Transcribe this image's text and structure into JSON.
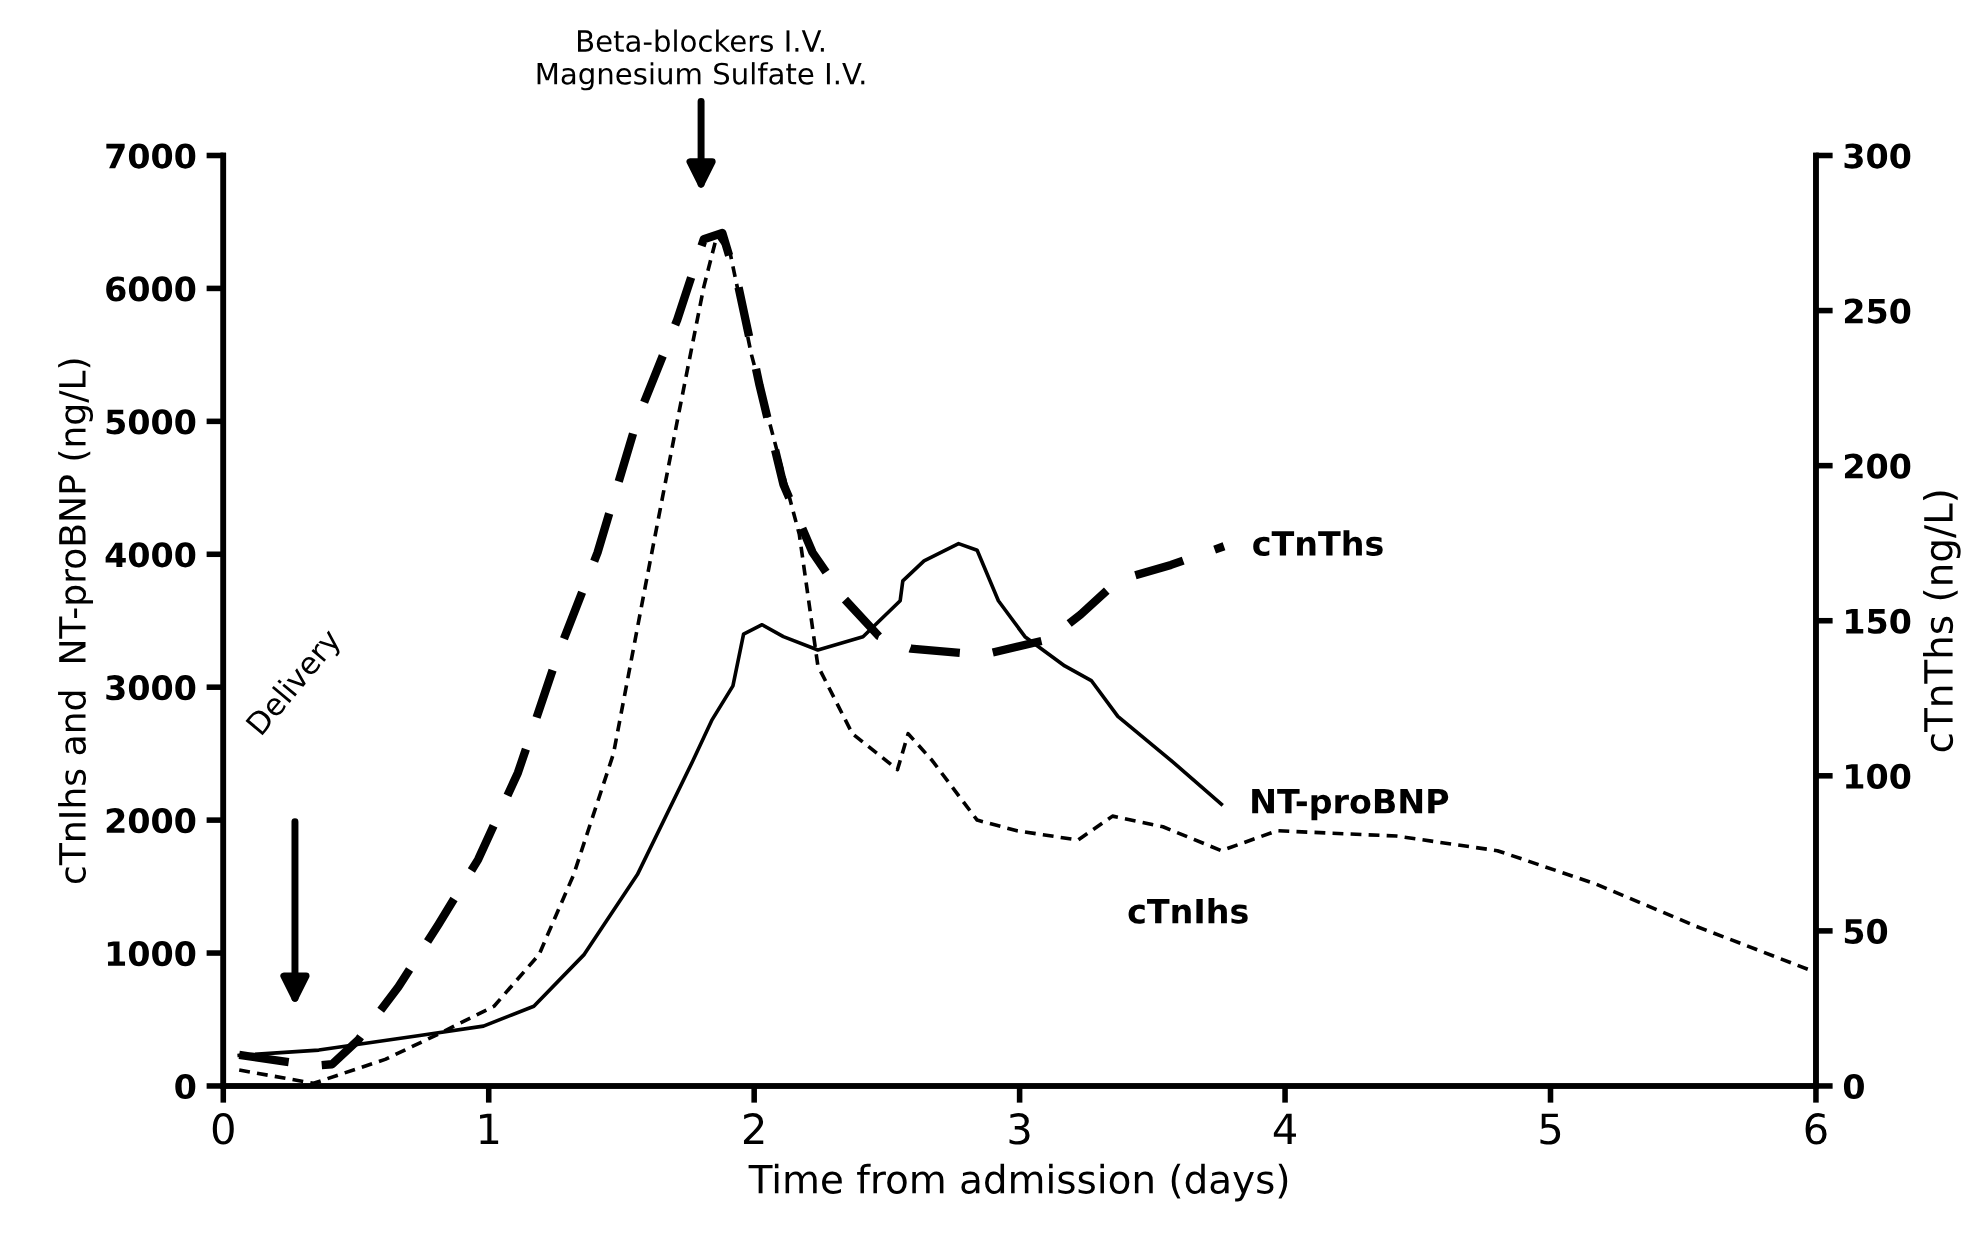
{
  "chart_data": {
    "type": "line",
    "xlabel": "Time from admission (days)",
    "ylabel": "cTnIhs and  NT-proBNP (ng/L)",
    "y2label": "cTnThs (ng/L)",
    "xlim": [
      0,
      6
    ],
    "xticks": [
      0,
      1,
      2,
      3,
      4,
      5,
      6
    ],
    "ylim": [
      0,
      7000
    ],
    "yticks": [
      0,
      1000,
      2000,
      3000,
      4000,
      5000,
      6000,
      7000
    ],
    "y2lim": [
      0,
      300
    ],
    "y2ticks": [
      0,
      50,
      100,
      150,
      200,
      250,
      300
    ],
    "grid": false,
    "legend": false,
    "marker": "none",
    "series": [
      {
        "name": "NT-proBNP",
        "color": "#000000",
        "line_style": "solid",
        "x": [
          0.06,
          0.36,
          0.74,
          0.98,
          1.17,
          1.36,
          1.56,
          1.77,
          1.84,
          1.92,
          1.96,
          2.03,
          2.11,
          2.24,
          2.41,
          2.55,
          2.56,
          2.64,
          2.77,
          2.84,
          2.92,
          3.02,
          3.17,
          3.27,
          3.37,
          3.57,
          3.76
        ],
        "values": [
          230,
          270,
          380,
          450,
          600,
          990,
          1590,
          2450,
          2750,
          3010,
          3400,
          3470,
          3380,
          3280,
          3380,
          3650,
          3800,
          3950,
          4080,
          4030,
          3650,
          3380,
          3160,
          3050,
          2780,
          2450,
          2120
        ]
      },
      {
        "name": "cTnThs",
        "color": "#000000",
        "line_style": "dashed",
        "axis": "y2",
        "x": [
          0.06,
          0.34,
          0.41,
          0.51,
          0.66,
          0.81,
          0.96,
          1.11,
          1.26,
          1.41,
          1.56,
          1.71,
          1.81,
          1.88,
          1.94,
          2.02,
          2.11,
          2.22,
          2.34,
          2.47,
          2.59,
          2.86,
          3.11,
          3.23,
          3.37,
          3.57,
          3.77
        ],
        "values": [
          10,
          6.5,
          7,
          15,
          32,
          52,
          73,
          101,
          139,
          172,
          215,
          247,
          273,
          275,
          258,
          226,
          194,
          172,
          157,
          145,
          141,
          139,
          144,
          152,
          163,
          168,
          174
        ]
      },
      {
        "name": "cTnIhs",
        "color": "#000000",
        "line_style": "dashed",
        "x": [
          0.06,
          0.34,
          0.61,
          0.81,
          1.02,
          1.19,
          1.32,
          1.47,
          1.59,
          1.71,
          1.81,
          1.86,
          1.91,
          1.99,
          2.09,
          2.17,
          2.24,
          2.37,
          2.54,
          2.58,
          2.67,
          2.84,
          2.99,
          3.22,
          3.35,
          3.54,
          3.76,
          3.97,
          4.42,
          4.8,
          5.17,
          5.55,
          5.98
        ],
        "values": [
          120,
          20,
          200,
          390,
          600,
          990,
          1590,
          2500,
          3760,
          5000,
          6010,
          6400,
          6260,
          5500,
          4750,
          4150,
          3160,
          2650,
          2380,
          2650,
          2450,
          2000,
          1920,
          1850,
          2030,
          1950,
          1770,
          1920,
          1880,
          1770,
          1520,
          1200,
          870
        ]
      }
    ],
    "annotations": [
      "Delivery",
      "Beta-blockers I.V.\nMagnesium Sulfate I.V."
    ]
  }
}
